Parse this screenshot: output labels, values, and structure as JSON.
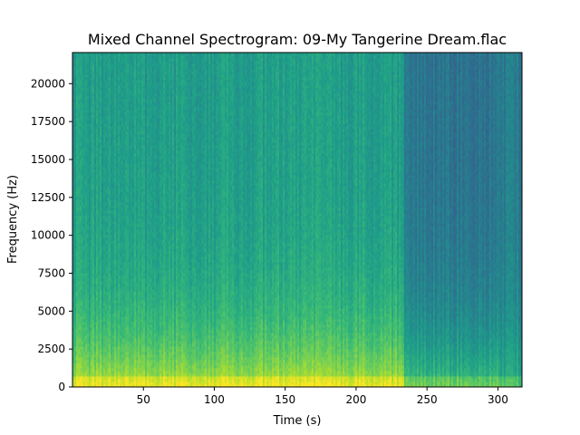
{
  "chart_data": {
    "type": "heatmap",
    "title": "Mixed Channel Spectrogram: 09-My Tangerine Dream.flac",
    "xlabel": "Time (s)",
    "ylabel": "Frequency (Hz)",
    "xlim": [
      0,
      317
    ],
    "ylim": [
      0,
      22050
    ],
    "x_ticks": [
      50,
      100,
      150,
      200,
      250,
      300
    ],
    "y_ticks": [
      0,
      2500,
      5000,
      7500,
      10000,
      12500,
      15000,
      17500,
      20000
    ],
    "colormap": "viridis",
    "grid": false,
    "segments": [
      {
        "t_start": 0,
        "t_end": 234,
        "low_freq_level": 0.9,
        "high_freq_level": 0.55
      },
      {
        "t_start": 234,
        "t_end": 301,
        "low_freq_level": 0.7,
        "high_freq_level": 0.38
      },
      {
        "t_start": 301,
        "t_end": 317,
        "low_freq_level": 0.65,
        "high_freq_level": 0.42
      }
    ]
  }
}
